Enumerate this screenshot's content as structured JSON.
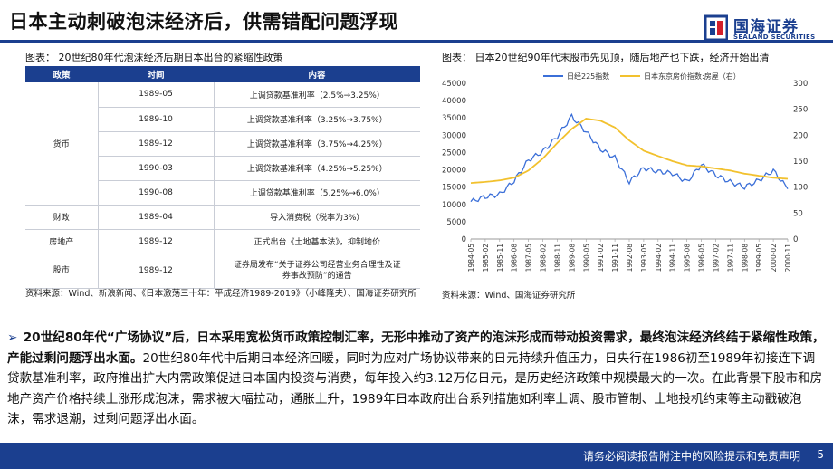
{
  "header": {
    "title": "日本主动刺破泡沫经济后，供需错配问题浮现",
    "logo_cn": "国海证券",
    "logo_en": "SEALAND SECURITIES",
    "brand_color": "#1b3f8f"
  },
  "left_figure": {
    "title": "图表： 20世纪80年代泡沫经济后期日本出台的紧缩性政策",
    "headers": [
      "政策",
      "时间",
      "内容"
    ],
    "rows": [
      {
        "category": "货币",
        "date": "1989-05",
        "content": "上调贷款基准利率（2.5%→3.25%）"
      },
      {
        "category": "",
        "date": "1989-10",
        "content": "上调贷款基准利率（3.25%→3.75%）"
      },
      {
        "category": "",
        "date": "1989-12",
        "content": "上调贷款基准利率（3.75%→4.25%）"
      },
      {
        "category": "",
        "date": "1990-03",
        "content": "上调贷款基准利率（4.25%→5.25%）"
      },
      {
        "category": "",
        "date": "1990-08",
        "content": "上调贷款基准利率（5.25%→6.0%）"
      },
      {
        "category": "财政",
        "date": "1989-04",
        "content": "导入消费税（税率为3%）"
      },
      {
        "category": "房地产",
        "date": "1989-12",
        "content": "正式出台《土地基本法》，抑制地价"
      },
      {
        "category": "股市",
        "date": "1989-12",
        "content": "证券局发布“关于证券公司经营业务合理性及证券事故预防”的通告"
      }
    ],
    "source": "资料来源：Wind、新浪新闻、《日本激荡三十年：平成经济1989-2019》（小峰隆夫）、国海证券研究所"
  },
  "right_figure": {
    "title": "图表： 日本20世纪90年代末股市先见顶，随后地产也下跌，经济开始出清",
    "source": "资料来源：Wind、国海证券研究所"
  },
  "chart_data": {
    "type": "line",
    "title": "日本20世纪90年代末股市先见顶，随后地产也下跌，经济开始出清",
    "x": [
      "1984-05",
      "1985-02",
      "1985-11",
      "1986-08",
      "1987-05",
      "1988-02",
      "1988-11",
      "1989-08",
      "1990-05",
      "1991-02",
      "1991-11",
      "1992-08",
      "1993-05",
      "1994-02",
      "1994-11",
      "1995-08",
      "1996-05",
      "1997-02",
      "1997-11",
      "1998-08",
      "1999-05",
      "2000-02",
      "2000-11"
    ],
    "series": [
      {
        "name": "日经225指数",
        "axis": "left",
        "color": "#3b6fd8",
        "values": [
          10800,
          12200,
          12900,
          16800,
          22800,
          25300,
          29600,
          35500,
          31000,
          26000,
          23500,
          16500,
          20500,
          19500,
          19000,
          16500,
          21500,
          18500,
          16500,
          15000,
          17000,
          19800,
          14500
        ]
      },
      {
        "name": "日本东京房价指数:房屋（右）",
        "axis": "right",
        "color": "#f2c12e",
        "values": [
          108,
          110,
          113,
          118,
          132,
          155,
          185,
          212,
          232,
          228,
          215,
          190,
          170,
          160,
          150,
          142,
          140,
          136,
          132,
          126,
          122,
          118,
          116
        ]
      }
    ],
    "y_left": {
      "min": 0,
      "max": 45000,
      "ticks": [
        0,
        5000,
        10000,
        15000,
        20000,
        25000,
        30000,
        35000,
        40000,
        45000
      ]
    },
    "y_right": {
      "min": 0,
      "max": 300,
      "ticks": [
        0,
        50,
        100,
        150,
        200,
        250,
        300
      ]
    },
    "legend": "top-left",
    "grid": false
  },
  "body": {
    "bullet": "➢",
    "bold_text": "20世纪80年代“广场协议”后，日本采用宽松货币政策控制汇率，无形中推动了资产的泡沫形成而带动投资需求，最终泡沫经济终结于紧缩性政策，产能过剩问题浮出水面。",
    "text": "20世纪80年代中后期日本经济回暖，同时为应对广场协议带来的日元持续升值压力，日央行在1986初至1989年初接连下调贷款基准利率，政府推出扩大内需政策促进日本国内投资与消费，每年投入约3.12万亿日元，是历史经济政策中规模最大的一次。在此背景下股市和房地产资产价格持续上涨形成泡沫，需求被大幅拉动，通胀上升，1989年日本政府出台系列措施如利率上调、股市管制、土地投机约束等主动戳破泡沫，需求退潮，过剩问题浮出水面。"
  },
  "footer": {
    "disclaimer": "请务必阅读报告附注中的风险提示和免责声明",
    "page_number": "5"
  }
}
